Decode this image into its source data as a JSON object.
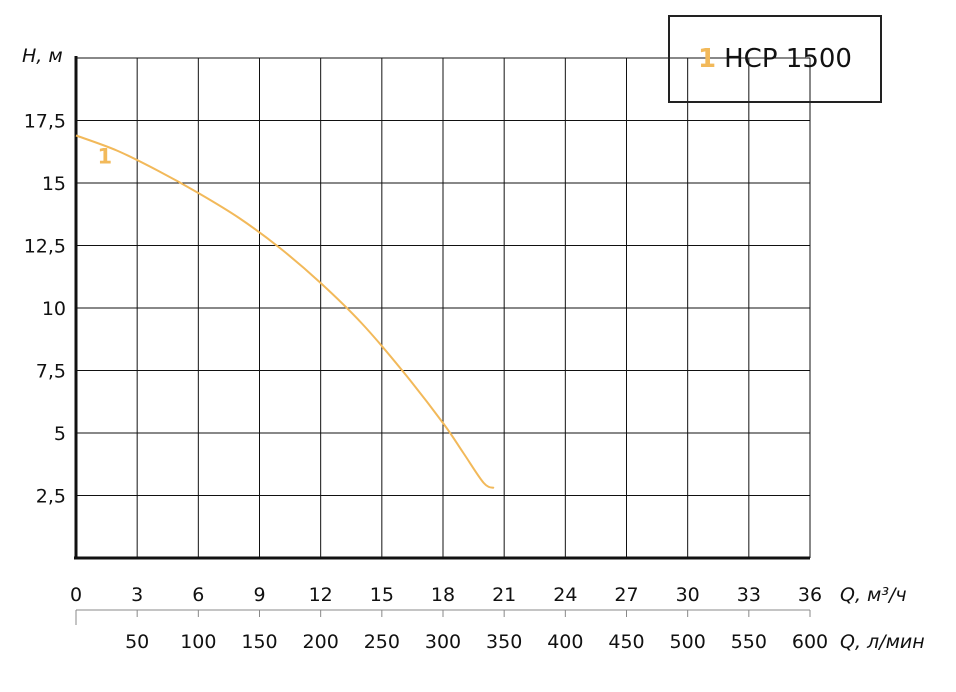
{
  "chart_data": {
    "type": "line",
    "ylabel": "H, м",
    "xlabel": "Q, м³/ч",
    "xlabel2": "Q, л/мин",
    "xlim": [
      0,
      36
    ],
    "ylim": [
      0,
      20
    ],
    "grid": true,
    "legend_position": "top-right",
    "y_ticks": [
      "17,5",
      "15",
      "12,5",
      "10",
      "7,5",
      "5",
      "2,5"
    ],
    "y_tick_values": [
      17.5,
      15,
      12.5,
      10,
      7.5,
      5,
      2.5
    ],
    "x_ticks": [
      "0",
      "3",
      "6",
      "9",
      "12",
      "15",
      "18",
      "21",
      "24",
      "27",
      "30",
      "33",
      "36"
    ],
    "x_tick_values": [
      0,
      3,
      6,
      9,
      12,
      15,
      18,
      21,
      24,
      27,
      30,
      33,
      36
    ],
    "x2_ticks": [
      "50",
      "100",
      "150",
      "200",
      "250",
      "300",
      "350",
      "400",
      "450",
      "500",
      "550",
      "600"
    ],
    "x2_tick_values": [
      50,
      100,
      150,
      200,
      250,
      300,
      350,
      400,
      450,
      500,
      550,
      600
    ],
    "series": [
      {
        "name": "HCP 1500",
        "label": "1",
        "color": "#F2B95A",
        "x": [
          0,
          2,
          4,
          6,
          8,
          10,
          12,
          14,
          16,
          18,
          19,
          20,
          20.5
        ],
        "y": [
          16.9,
          16.3,
          15.5,
          14.6,
          13.6,
          12.4,
          11.0,
          9.4,
          7.5,
          5.4,
          4.2,
          3.0,
          2.8
        ]
      }
    ]
  },
  "legend": {
    "number": "1",
    "name": "HCP 1500"
  }
}
